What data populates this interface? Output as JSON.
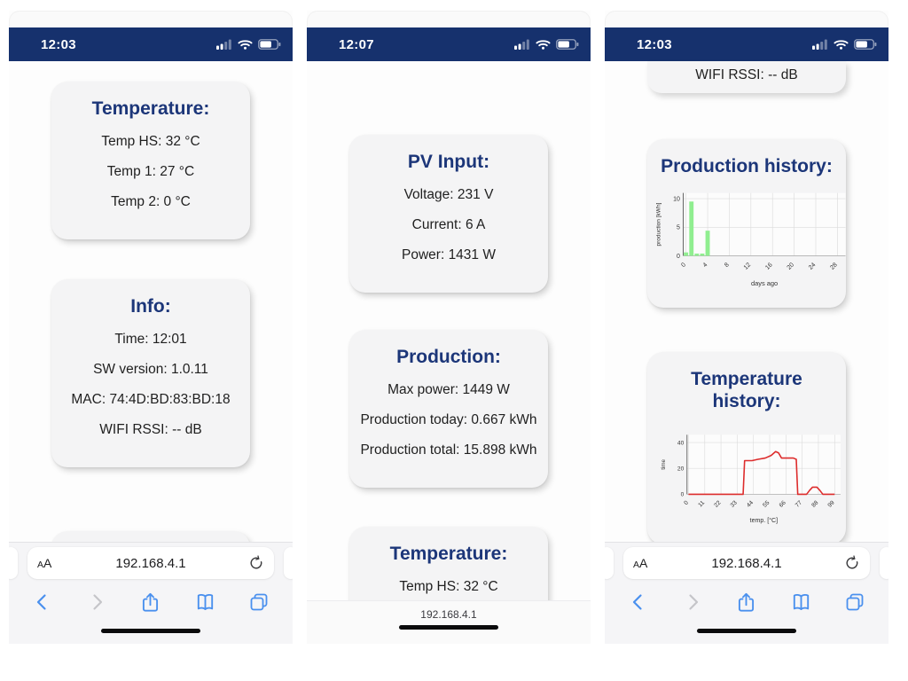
{
  "colors": {
    "status_bar_navy": "#16316d",
    "card_title_navy": "#1c3679",
    "ios_blue": "#4a90ee",
    "disabled_gray": "#c5c5c9",
    "bar_green": "#90ee90",
    "line_red": "#dd2c2c"
  },
  "phones": [
    {
      "status_time": "12:03",
      "cards": [
        {
          "title": "Temperature:",
          "lines": [
            "Temp HS: 32 °C",
            "Temp 1: 27 °C",
            "Temp 2: 0 °C"
          ]
        },
        {
          "title": "Info:",
          "lines": [
            "Time: 12:01",
            "SW version: 1.0.11",
            "MAC: 74:4D:BD:83:BD:18",
            "WIFI RSSI: -- dB"
          ]
        },
        {
          "title": "Production history:"
        }
      ],
      "browser": {
        "reader": "AA",
        "url": "192.168.4.1"
      }
    },
    {
      "status_time": "12:07",
      "cards": [
        {
          "title": "PV Input:",
          "lines": [
            "Voltage: 231 V",
            "Current: 6 A",
            "Power: 1431 W"
          ]
        },
        {
          "title": "Production:",
          "lines": [
            "Max power: 1449 W",
            "Production today: 0.667 kWh",
            "Production total: 15.898 kWh"
          ]
        },
        {
          "title": "Temperature:",
          "lines": [
            "Temp HS: 32 °C",
            "Temp 1: 27 °C"
          ]
        }
      ],
      "browser": {
        "url": "192.168.4.1"
      }
    },
    {
      "status_time": "12:03",
      "partial_line": "WIFI RSSI: -- dB",
      "browser": {
        "reader": "AA",
        "url": "192.168.4.1"
      }
    }
  ],
  "chart_data": [
    {
      "type": "bar",
      "title": "Production history:",
      "xlabel": "days ago",
      "ylabel": "production [kWh]",
      "x_ticks": [
        0,
        4,
        8,
        12,
        16,
        20,
        24,
        28
      ],
      "y_ticks": [
        0,
        5,
        10
      ],
      "xlim": [
        -0.5,
        29.5
      ],
      "ylim": [
        0,
        11
      ],
      "grid": true,
      "bar_color": "#90ee90",
      "x": [
        0,
        1,
        2,
        3,
        4
      ],
      "values": [
        0.6,
        9.5,
        0.4,
        0.4,
        4.4
      ]
    },
    {
      "type": "line",
      "title": "Temperature history:",
      "xlabel": "temp. [°C]",
      "ylabel": "time",
      "x_ticks": [
        0,
        11,
        22,
        33,
        44,
        55,
        66,
        77,
        88,
        99
      ],
      "y_ticks": [
        0,
        20,
        40
      ],
      "xlim": [
        -1,
        103
      ],
      "ylim": [
        0,
        46
      ],
      "grid": true,
      "line_color": "#dd2c2c",
      "points": [
        [
          0,
          0
        ],
        [
          37,
          0
        ],
        [
          38,
          26
        ],
        [
          43,
          26
        ],
        [
          47,
          27
        ],
        [
          52,
          28
        ],
        [
          56,
          30
        ],
        [
          59,
          33
        ],
        [
          61,
          32
        ],
        [
          63,
          28
        ],
        [
          71,
          28
        ],
        [
          73,
          27
        ],
        [
          74,
          0
        ],
        [
          80,
          0
        ],
        [
          82,
          3
        ],
        [
          84,
          5.5
        ],
        [
          87,
          5.5
        ],
        [
          89,
          3
        ],
        [
          91,
          0
        ],
        [
          99,
          0
        ]
      ]
    }
  ]
}
